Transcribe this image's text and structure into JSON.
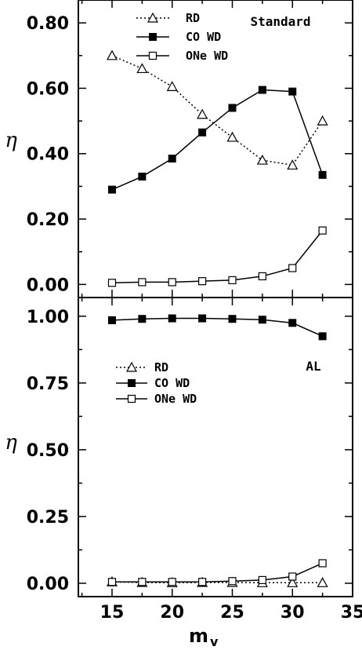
{
  "chart_data": [
    {
      "type": "line",
      "panel_label": "Standard",
      "ylabel": "η",
      "ylim": [
        -0.04,
        0.87
      ],
      "yticks": [
        "0.00",
        "0.20",
        "0.40",
        "0.60",
        "0.80"
      ],
      "ytick_values": [
        0.0,
        0.2,
        0.4,
        0.6,
        0.8
      ],
      "x": [
        15,
        17.5,
        20,
        22.5,
        25,
        27.5,
        30,
        32.5
      ],
      "series": [
        {
          "name": "RD",
          "marker": "open-triangle",
          "line": "dotted",
          "values": [
            0.7,
            0.66,
            0.605,
            0.52,
            0.45,
            0.38,
            0.365,
            0.5
          ]
        },
        {
          "name": "CO WD",
          "marker": "filled-square",
          "line": "solid",
          "values": [
            0.29,
            0.33,
            0.385,
            0.465,
            0.54,
            0.595,
            0.59,
            0.335
          ]
        },
        {
          "name": "ONe WD",
          "marker": "open-square",
          "line": "solid",
          "values": [
            0.005,
            0.007,
            0.007,
            0.01,
            0.013,
            0.025,
            0.05,
            0.165
          ]
        }
      ],
      "legend_position": "top-center"
    },
    {
      "type": "line",
      "panel_label": "AL",
      "ylabel": "η",
      "ylim": [
        -0.05,
        1.07
      ],
      "yticks": [
        "0.00",
        "0.25",
        "0.50",
        "0.75",
        "1.00"
      ],
      "ytick_values": [
        0.0,
        0.25,
        0.5,
        0.75,
        1.0
      ],
      "x": [
        15,
        17.5,
        20,
        22.5,
        25,
        27.5,
        30,
        32.5
      ],
      "series": [
        {
          "name": "RD",
          "marker": "open-triangle",
          "line": "dotted",
          "values": [
            0.005,
            0.003,
            0.002,
            0.003,
            0.003,
            0.002,
            0.002,
            0.002
          ]
        },
        {
          "name": "CO WD",
          "marker": "filled-square",
          "line": "solid",
          "values": [
            0.985,
            0.99,
            0.992,
            0.992,
            0.99,
            0.987,
            0.975,
            0.925
          ]
        },
        {
          "name": "ONe WD",
          "marker": "open-square",
          "line": "solid",
          "values": [
            0.005,
            0.005,
            0.005,
            0.005,
            0.008,
            0.012,
            0.025,
            0.075
          ]
        }
      ],
      "legend_position": "upper-left"
    }
  ],
  "x_axis": {
    "label": "m",
    "label_sub": "v",
    "xlim": [
      12.2,
      35
    ],
    "ticks": [
      "15",
      "20",
      "25",
      "30",
      "35"
    ],
    "tick_values": [
      15,
      20,
      25,
      30,
      35
    ]
  }
}
